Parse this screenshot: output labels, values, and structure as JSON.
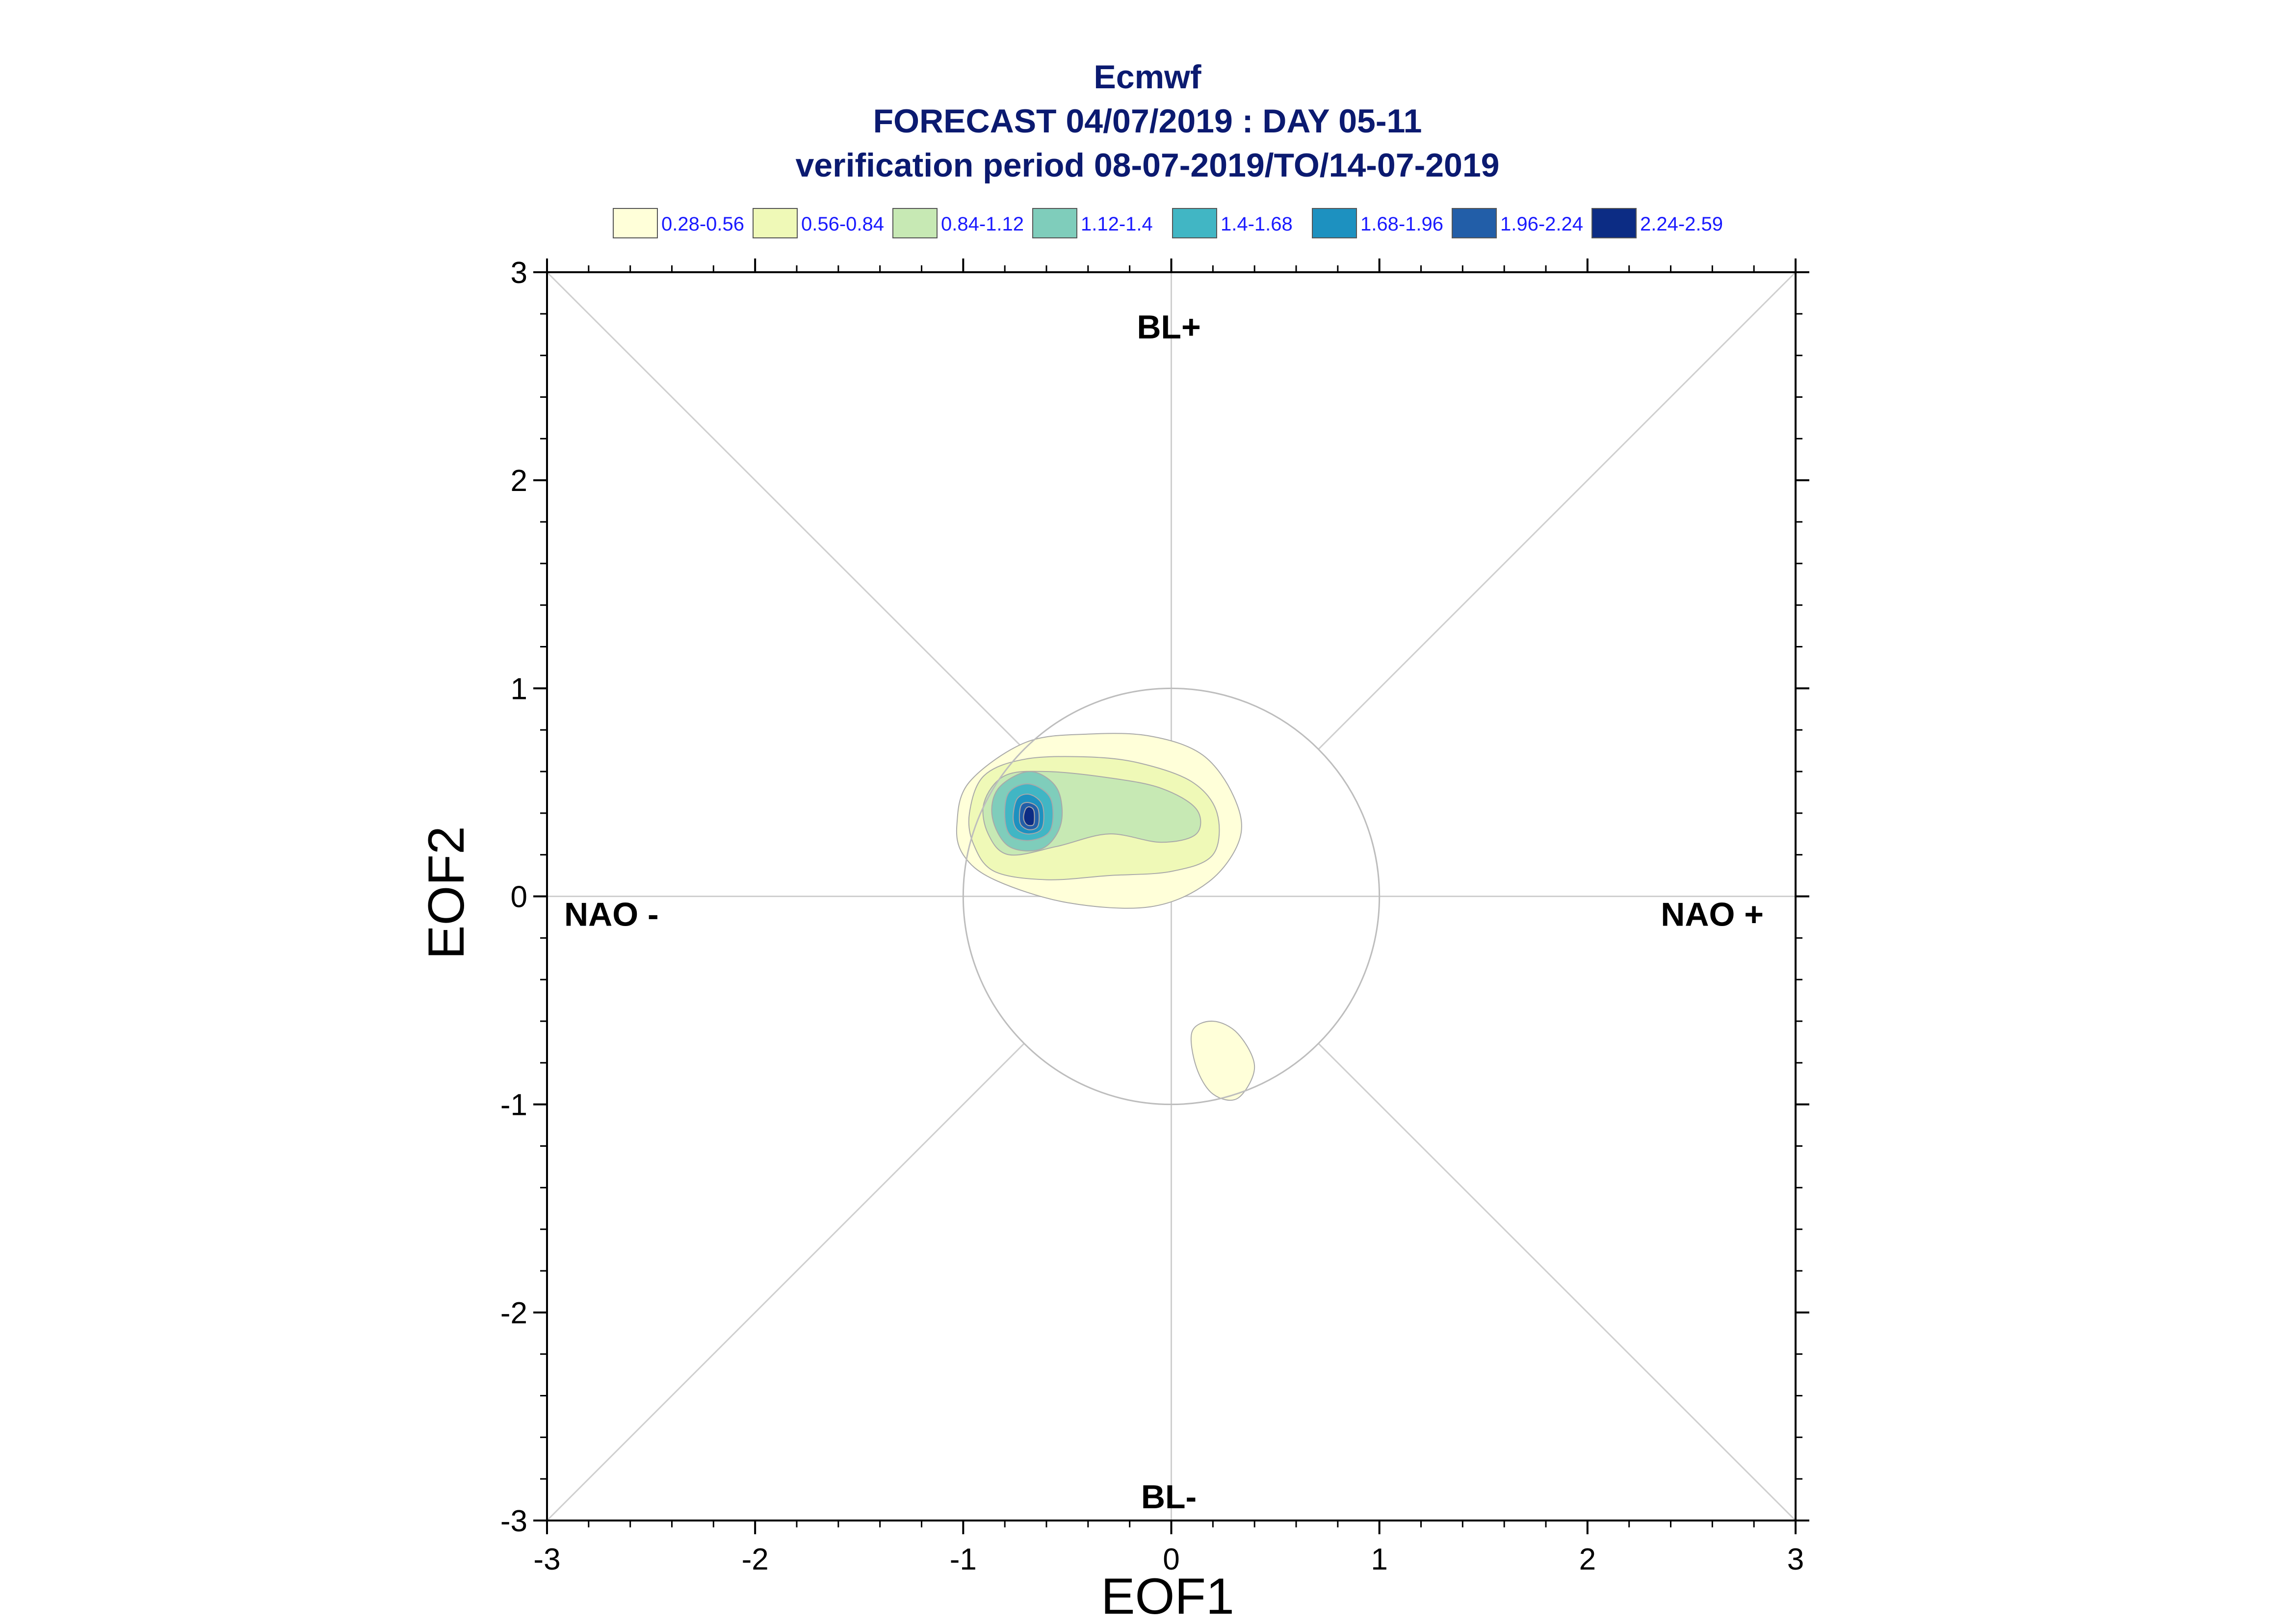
{
  "chart_data": {
    "type": "heatmap",
    "title": "Ecmwf",
    "subtitle": "FORECAST 04/07/2019 : DAY 05-11",
    "subtitle2": "verification period 08-07-2019/TO/14-07-2019",
    "xlabel": "EOF1",
    "ylabel": "EOF2",
    "xlim": [
      -3,
      3
    ],
    "ylim": [
      -3,
      3
    ],
    "xticks": [
      "-3",
      "-2",
      "-1",
      "0",
      "1",
      "2",
      "3"
    ],
    "yticks": [
      "-3",
      "-2",
      "-1",
      "0",
      "1",
      "2",
      "3"
    ],
    "region_labels": {
      "top": "BL+",
      "bottom": "BL-",
      "left": "NAO -",
      "right": "NAO +"
    },
    "reference_circle_radius": 1,
    "legend": {
      "placement": "top",
      "bins": [
        {
          "label": "0.28-0.56",
          "color": "#ffffd9"
        },
        {
          "label": "0.56-0.84",
          "color": "#eff9b7"
        },
        {
          "label": "0.84-1.12",
          "color": "#c7e9b4"
        },
        {
          "label": "1.12-1.4",
          "color": "#7fcdbb"
        },
        {
          "label": "1.4-1.68",
          "color": "#41b6c4"
        },
        {
          "label": "1.68-1.96",
          "color": "#1d91c0"
        },
        {
          "label": "1.96-2.24",
          "color": "#225ea8"
        },
        {
          "label": "2.24-2.59",
          "color": "#0c2c84"
        }
      ]
    },
    "contours": [
      {
        "level": 0,
        "points": [
          [
            -1.0,
            0.2
          ],
          [
            -1.03,
            0.35
          ],
          [
            -0.97,
            0.55
          ],
          [
            -0.7,
            0.74
          ],
          [
            -0.4,
            0.78
          ],
          [
            -0.1,
            0.77
          ],
          [
            0.15,
            0.68
          ],
          [
            0.3,
            0.48
          ],
          [
            0.33,
            0.28
          ],
          [
            0.18,
            0.07
          ],
          [
            -0.1,
            -0.05
          ],
          [
            -0.5,
            -0.03
          ],
          [
            -0.85,
            0.08
          ]
        ]
      },
      {
        "level": 0,
        "points": [
          [
            0.1,
            -0.65
          ],
          [
            0.2,
            -0.6
          ],
          [
            0.32,
            -0.66
          ],
          [
            0.4,
            -0.82
          ],
          [
            0.32,
            -0.97
          ],
          [
            0.2,
            -0.95
          ],
          [
            0.12,
            -0.82
          ]
        ]
      },
      {
        "level": 1,
        "points": [
          [
            -0.95,
            0.25
          ],
          [
            -0.97,
            0.4
          ],
          [
            -0.9,
            0.58
          ],
          [
            -0.7,
            0.66
          ],
          [
            -0.4,
            0.67
          ],
          [
            -0.15,
            0.64
          ],
          [
            0.1,
            0.55
          ],
          [
            0.22,
            0.4
          ],
          [
            0.2,
            0.2
          ],
          [
            0.0,
            0.12
          ],
          [
            -0.3,
            0.1
          ],
          [
            -0.6,
            0.08
          ],
          [
            -0.85,
            0.12
          ]
        ]
      },
      {
        "level": 2,
        "points": [
          [
            -0.88,
            0.3
          ],
          [
            -0.9,
            0.45
          ],
          [
            -0.8,
            0.58
          ],
          [
            -0.6,
            0.6
          ],
          [
            -0.3,
            0.57
          ],
          [
            -0.05,
            0.52
          ],
          [
            0.12,
            0.42
          ],
          [
            0.12,
            0.3
          ],
          [
            -0.05,
            0.26
          ],
          [
            -0.3,
            0.3
          ],
          [
            -0.55,
            0.24
          ],
          [
            -0.78,
            0.2
          ]
        ]
      },
      {
        "level": 3,
        "points": [
          [
            -0.86,
            0.38
          ],
          [
            -0.83,
            0.52
          ],
          [
            -0.68,
            0.6
          ],
          [
            -0.55,
            0.52
          ],
          [
            -0.53,
            0.35
          ],
          [
            -0.62,
            0.23
          ],
          [
            -0.78,
            0.24
          ]
        ]
      },
      {
        "level": 4,
        "points": [
          [
            -0.8,
            0.38
          ],
          [
            -0.78,
            0.5
          ],
          [
            -0.68,
            0.54
          ],
          [
            -0.58,
            0.47
          ],
          [
            -0.58,
            0.32
          ],
          [
            -0.67,
            0.27
          ],
          [
            -0.77,
            0.29
          ]
        ]
      },
      {
        "level": 5,
        "points": [
          [
            -0.76,
            0.38
          ],
          [
            -0.74,
            0.47
          ],
          [
            -0.68,
            0.49
          ],
          [
            -0.62,
            0.44
          ],
          [
            -0.62,
            0.33
          ],
          [
            -0.68,
            0.3
          ],
          [
            -0.74,
            0.32
          ]
        ]
      },
      {
        "level": 6,
        "points": [
          [
            -0.73,
            0.38
          ],
          [
            -0.72,
            0.44
          ],
          [
            -0.68,
            0.45
          ],
          [
            -0.64,
            0.42
          ],
          [
            -0.64,
            0.34
          ],
          [
            -0.68,
            0.32
          ],
          [
            -0.72,
            0.34
          ]
        ]
      },
      {
        "level": 7,
        "points": [
          [
            -0.71,
            0.38
          ],
          [
            -0.7,
            0.42
          ],
          [
            -0.68,
            0.43
          ],
          [
            -0.66,
            0.41
          ],
          [
            -0.66,
            0.35
          ],
          [
            -0.68,
            0.34
          ],
          [
            -0.7,
            0.35
          ]
        ]
      }
    ]
  }
}
